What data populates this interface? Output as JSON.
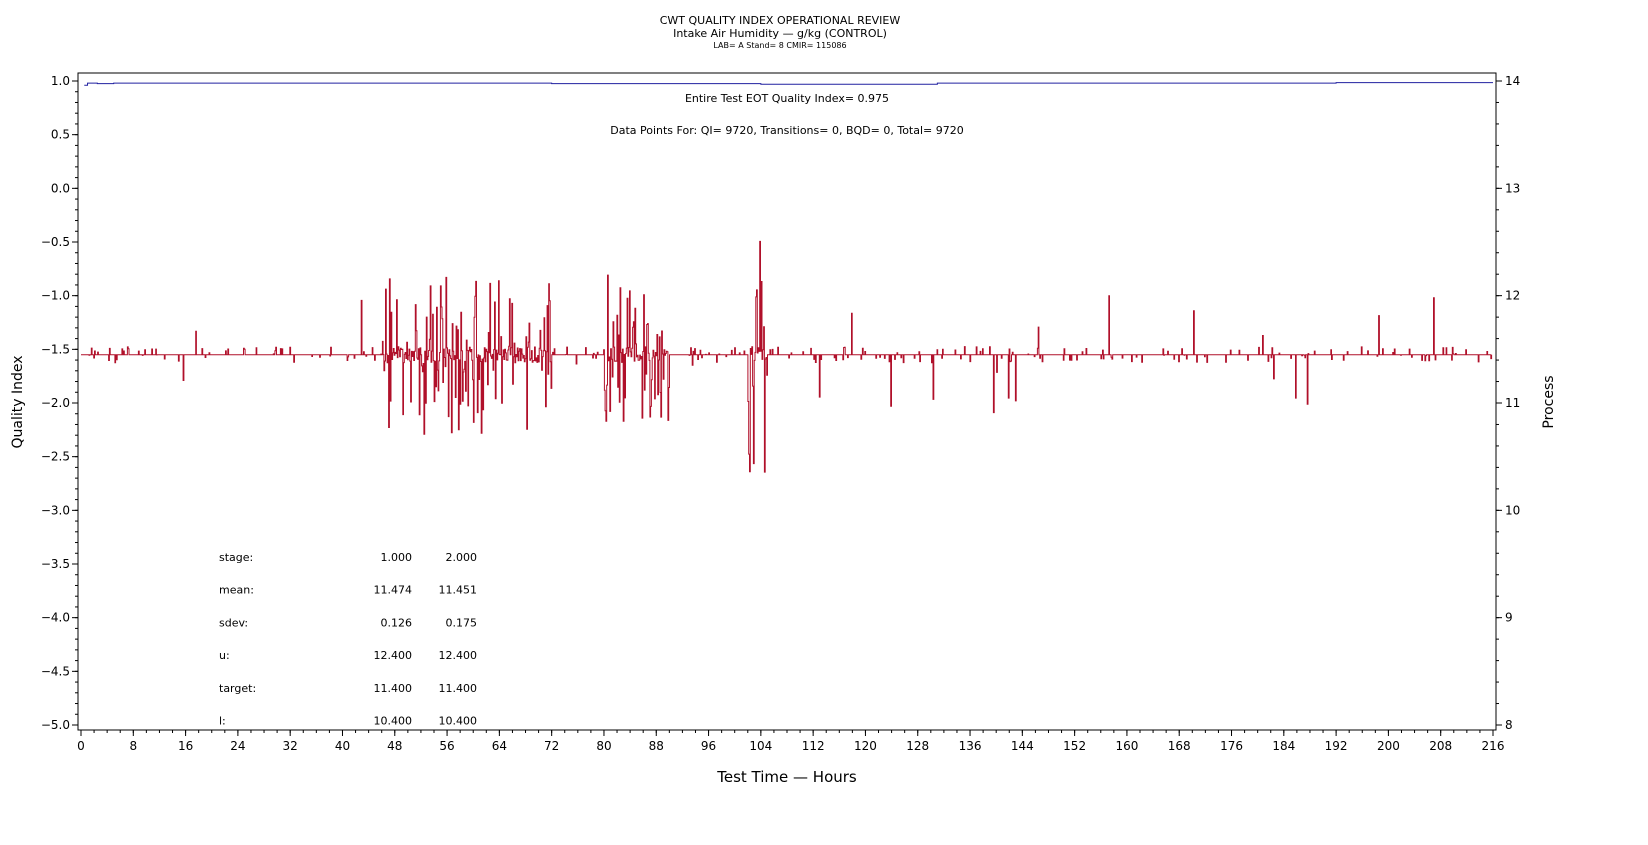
{
  "chart_data": {
    "type": "line",
    "title": "CWT QUALITY INDEX OPERATIONAL REVIEW",
    "subtitle": "Intake Air Humidity — g/kg (CONTROL)",
    "info": "LAB= A Stand= 8 CMIR= 115086",
    "xlabel": "Test Time — Hours",
    "ylabel": "Quality Index",
    "y2label": "Process",
    "xlim": [
      0,
      216
    ],
    "ylim": [
      -5,
      1
    ],
    "y2lim": [
      8,
      14
    ],
    "xticks": [
      0,
      8,
      16,
      24,
      32,
      40,
      48,
      56,
      64,
      72,
      80,
      88,
      96,
      104,
      112,
      120,
      128,
      136,
      144,
      152,
      160,
      168,
      176,
      184,
      192,
      200,
      208,
      216
    ],
    "yticks": [
      1.0,
      0.5,
      0.0,
      -0.5,
      -1.0,
      -1.5,
      -2.0,
      -2.5,
      -3.0,
      -3.5,
      -4.0,
      -4.5,
      -5.0
    ],
    "y2ticks": [
      14,
      13,
      12,
      11,
      10,
      9,
      8
    ],
    "annotations": [
      "Entire Test EOT Quality Index=   0.975",
      "Data Points For: QI=  9720, Transitions=     0, BQD=     0, Total=  9720"
    ],
    "series": [
      {
        "name": "Quality Index",
        "axis": "left",
        "color": "#2020a0",
        "x": [
          0.5,
          1,
          2.5,
          5,
          27,
          72,
          104,
          131,
          192,
          216
        ],
        "y": [
          0.96,
          0.98,
          0.975,
          0.98,
          0.98,
          0.975,
          0.97,
          0.98,
          0.985,
          0.985
        ]
      },
      {
        "name": "Process",
        "axis": "right",
        "color": "#b0102a",
        "center": 11.45,
        "envelope": [
          {
            "from": 0,
            "to": 20,
            "min": 11.0,
            "max": 11.8
          },
          {
            "from": 20,
            "to": 46,
            "min": 10.9,
            "max": 12.0
          },
          {
            "from": 46,
            "to": 72,
            "min": 10.7,
            "max": 12.2
          },
          {
            "from": 72,
            "to": 80,
            "min": 11.3,
            "max": 11.6
          },
          {
            "from": 80,
            "to": 90,
            "min": 10.8,
            "max": 12.3
          },
          {
            "from": 90,
            "to": 102,
            "min": 11.3,
            "max": 11.7
          },
          {
            "from": 102,
            "to": 105,
            "min": 10.2,
            "max": 13.1
          },
          {
            "from": 105,
            "to": 216,
            "min": 10.9,
            "max": 12.0
          }
        ]
      }
    ],
    "stats_table": {
      "rows": [
        {
          "label": "stage:",
          "v1": "1.000",
          "v2": "2.000"
        },
        {
          "label": "mean:",
          "v1": "11.474",
          "v2": "11.451"
        },
        {
          "label": "sdev:",
          "v1": "0.126",
          "v2": "0.175"
        },
        {
          "label": "u:",
          "v1": "12.400",
          "v2": "12.400"
        },
        {
          "label": "target:",
          "v1": "11.400",
          "v2": "11.400"
        },
        {
          "label": "l:",
          "v1": "10.400",
          "v2": "10.400"
        }
      ]
    }
  }
}
